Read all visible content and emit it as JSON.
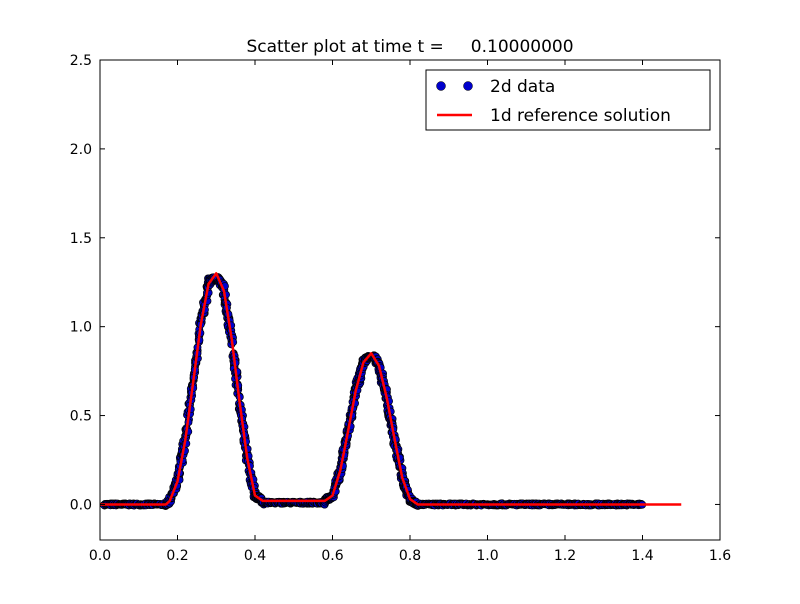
{
  "chart_data": {
    "type": "scatter",
    "title": "Scatter plot at time t =     0.10000000",
    "xlabel": "",
    "ylabel": "",
    "xlim": [
      0.0,
      1.6
    ],
    "ylim": [
      -0.2,
      2.5
    ],
    "xticks": [
      0.0,
      0.2,
      0.4,
      0.6,
      0.8,
      1.0,
      1.2,
      1.4,
      1.6
    ],
    "yticks": [
      0.0,
      0.5,
      1.0,
      1.5,
      2.0,
      2.5
    ],
    "xtick_labels": [
      "0.0",
      "0.2",
      "0.4",
      "0.6",
      "0.8",
      "1.0",
      "1.2",
      "1.4",
      "1.6"
    ],
    "ytick_labels": [
      "0.0",
      "0.5",
      "1.0",
      "1.5",
      "2.0",
      "2.5"
    ],
    "grid": false,
    "legend_position": "top-right",
    "series": [
      {
        "name": "2d data",
        "kind": "scatter",
        "color": "#0000cc",
        "edge_color": "#000000",
        "x_range": [
          0.01,
          1.4
        ],
        "peaks": [
          {
            "x": 0.3,
            "y": 1.25
          },
          {
            "x": 0.7,
            "y": 0.81
          }
        ],
        "plateau": {
          "x": [
            0.4,
            0.6
          ],
          "y": 0.01
        }
      },
      {
        "name": "1d reference solution",
        "kind": "line",
        "color": "#ff0000",
        "x": [
          0.0,
          0.1,
          0.17,
          0.18,
          0.2,
          0.22,
          0.24,
          0.26,
          0.28,
          0.3,
          0.32,
          0.34,
          0.36,
          0.38,
          0.4,
          0.42,
          0.5,
          0.58,
          0.6,
          0.62,
          0.64,
          0.66,
          0.68,
          0.7,
          0.72,
          0.74,
          0.76,
          0.78,
          0.8,
          0.82,
          1.0,
          1.2,
          1.4,
          1.5
        ],
        "y": [
          0.0,
          0.0,
          0.0,
          0.02,
          0.13,
          0.36,
          0.68,
          1.01,
          1.24,
          1.3,
          1.2,
          0.93,
          0.58,
          0.26,
          0.05,
          0.02,
          0.02,
          0.02,
          0.05,
          0.19,
          0.41,
          0.64,
          0.8,
          0.85,
          0.78,
          0.6,
          0.37,
          0.15,
          0.03,
          0.0,
          0.0,
          0.0,
          0.0,
          0.0
        ]
      }
    ]
  }
}
